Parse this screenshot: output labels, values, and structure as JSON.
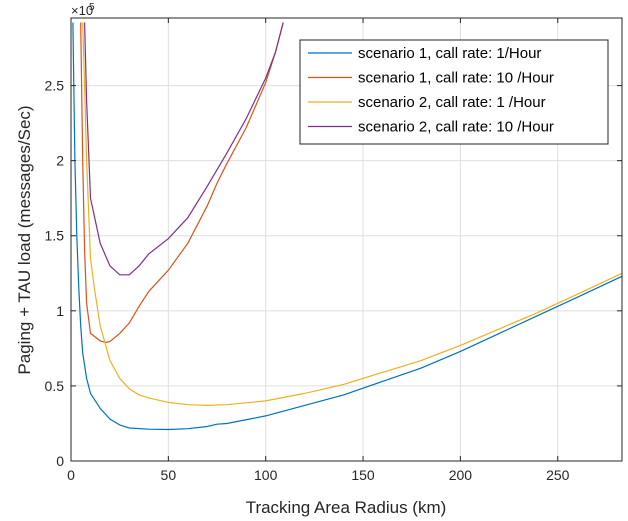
{
  "chart_data": {
    "type": "line",
    "title": "",
    "xlabel": "Tracking Area Radius (km)",
    "ylabel": "Paging + TAU  load (messages/Sec)",
    "xlim": [
      0,
      283
    ],
    "ylim": [
      0,
      295000
    ],
    "x_ticks": [
      0,
      50,
      100,
      150,
      200,
      250
    ],
    "y_ticks": [
      0,
      50000,
      100000,
      150000,
      200000,
      250000
    ],
    "y_tick_labels": [
      "0",
      "0.5",
      "1",
      "1.5",
      "2",
      "2.5"
    ],
    "y_exponent_label": "×10",
    "y_exponent_power": "5",
    "grid": true,
    "legend_position": "top-right",
    "series": [
      {
        "name": "scenario 1, call rate: 1/Hour",
        "color": "#0072BD",
        "points": [
          [
            1,
            292000
          ],
          [
            2,
            200000
          ],
          [
            3,
            150000
          ],
          [
            4,
            115000
          ],
          [
            5,
            90000
          ],
          [
            6,
            72000
          ],
          [
            8,
            55000
          ],
          [
            10,
            45000
          ],
          [
            15,
            35000
          ],
          [
            20,
            28000
          ],
          [
            25,
            24000
          ],
          [
            30,
            22000
          ],
          [
            40,
            21200
          ],
          [
            50,
            21000
          ],
          [
            60,
            21500
          ],
          [
            70,
            23000
          ],
          [
            75,
            24500
          ],
          [
            80,
            25000
          ],
          [
            100,
            30000
          ],
          [
            120,
            37000
          ],
          [
            140,
            44000
          ],
          [
            160,
            53000
          ],
          [
            180,
            62000
          ],
          [
            200,
            73000
          ],
          [
            220,
            85000
          ],
          [
            240,
            97000
          ],
          [
            260,
            109000
          ],
          [
            283,
            123000
          ]
        ]
      },
      {
        "name": "scenario 1, call rate: 10 /Hour",
        "color": "#D95319",
        "points": [
          [
            5,
            292000
          ],
          [
            6,
            200000
          ],
          [
            7,
            140000
          ],
          [
            8,
            105000
          ],
          [
            10,
            85000
          ],
          [
            15,
            80000
          ],
          [
            18,
            79000
          ],
          [
            20,
            79500
          ],
          [
            25,
            85000
          ],
          [
            30,
            92000
          ],
          [
            35,
            103000
          ],
          [
            40,
            113000
          ],
          [
            50,
            127000
          ],
          [
            60,
            145000
          ],
          [
            70,
            170000
          ],
          [
            75,
            185000
          ],
          [
            80,
            198000
          ],
          [
            90,
            222000
          ],
          [
            100,
            252000
          ],
          [
            105,
            272000
          ],
          [
            109,
            292000
          ]
        ]
      },
      {
        "name": "scenario 2, call rate: 1 /Hour",
        "color": "#EDB120",
        "points": [
          [
            6,
            292000
          ],
          [
            7,
            250000
          ],
          [
            8,
            200000
          ],
          [
            10,
            135000
          ],
          [
            12,
            115000
          ],
          [
            15,
            90000
          ],
          [
            20,
            67000
          ],
          [
            25,
            55000
          ],
          [
            30,
            48000
          ],
          [
            35,
            44000
          ],
          [
            40,
            42000
          ],
          [
            50,
            39000
          ],
          [
            60,
            37500
          ],
          [
            70,
            37000
          ],
          [
            80,
            37500
          ],
          [
            100,
            40000
          ],
          [
            120,
            45000
          ],
          [
            140,
            51000
          ],
          [
            160,
            59000
          ],
          [
            180,
            67000
          ],
          [
            200,
            77000
          ],
          [
            220,
            88000
          ],
          [
            240,
            99000
          ],
          [
            260,
            111000
          ],
          [
            283,
            125000
          ]
        ]
      },
      {
        "name": "scenario 2, call rate: 10 /Hour",
        "color": "#7E2F8E",
        "points": [
          [
            7,
            292000
          ],
          [
            8,
            240000
          ],
          [
            10,
            175000
          ],
          [
            15,
            145000
          ],
          [
            20,
            130000
          ],
          [
            25,
            124000
          ],
          [
            30,
            124000
          ],
          [
            35,
            130000
          ],
          [
            40,
            138000
          ],
          [
            50,
            148000
          ],
          [
            60,
            162000
          ],
          [
            70,
            183000
          ],
          [
            80,
            205000
          ],
          [
            90,
            228000
          ],
          [
            100,
            255000
          ],
          [
            105,
            272000
          ],
          [
            109,
            292000
          ]
        ]
      }
    ]
  }
}
